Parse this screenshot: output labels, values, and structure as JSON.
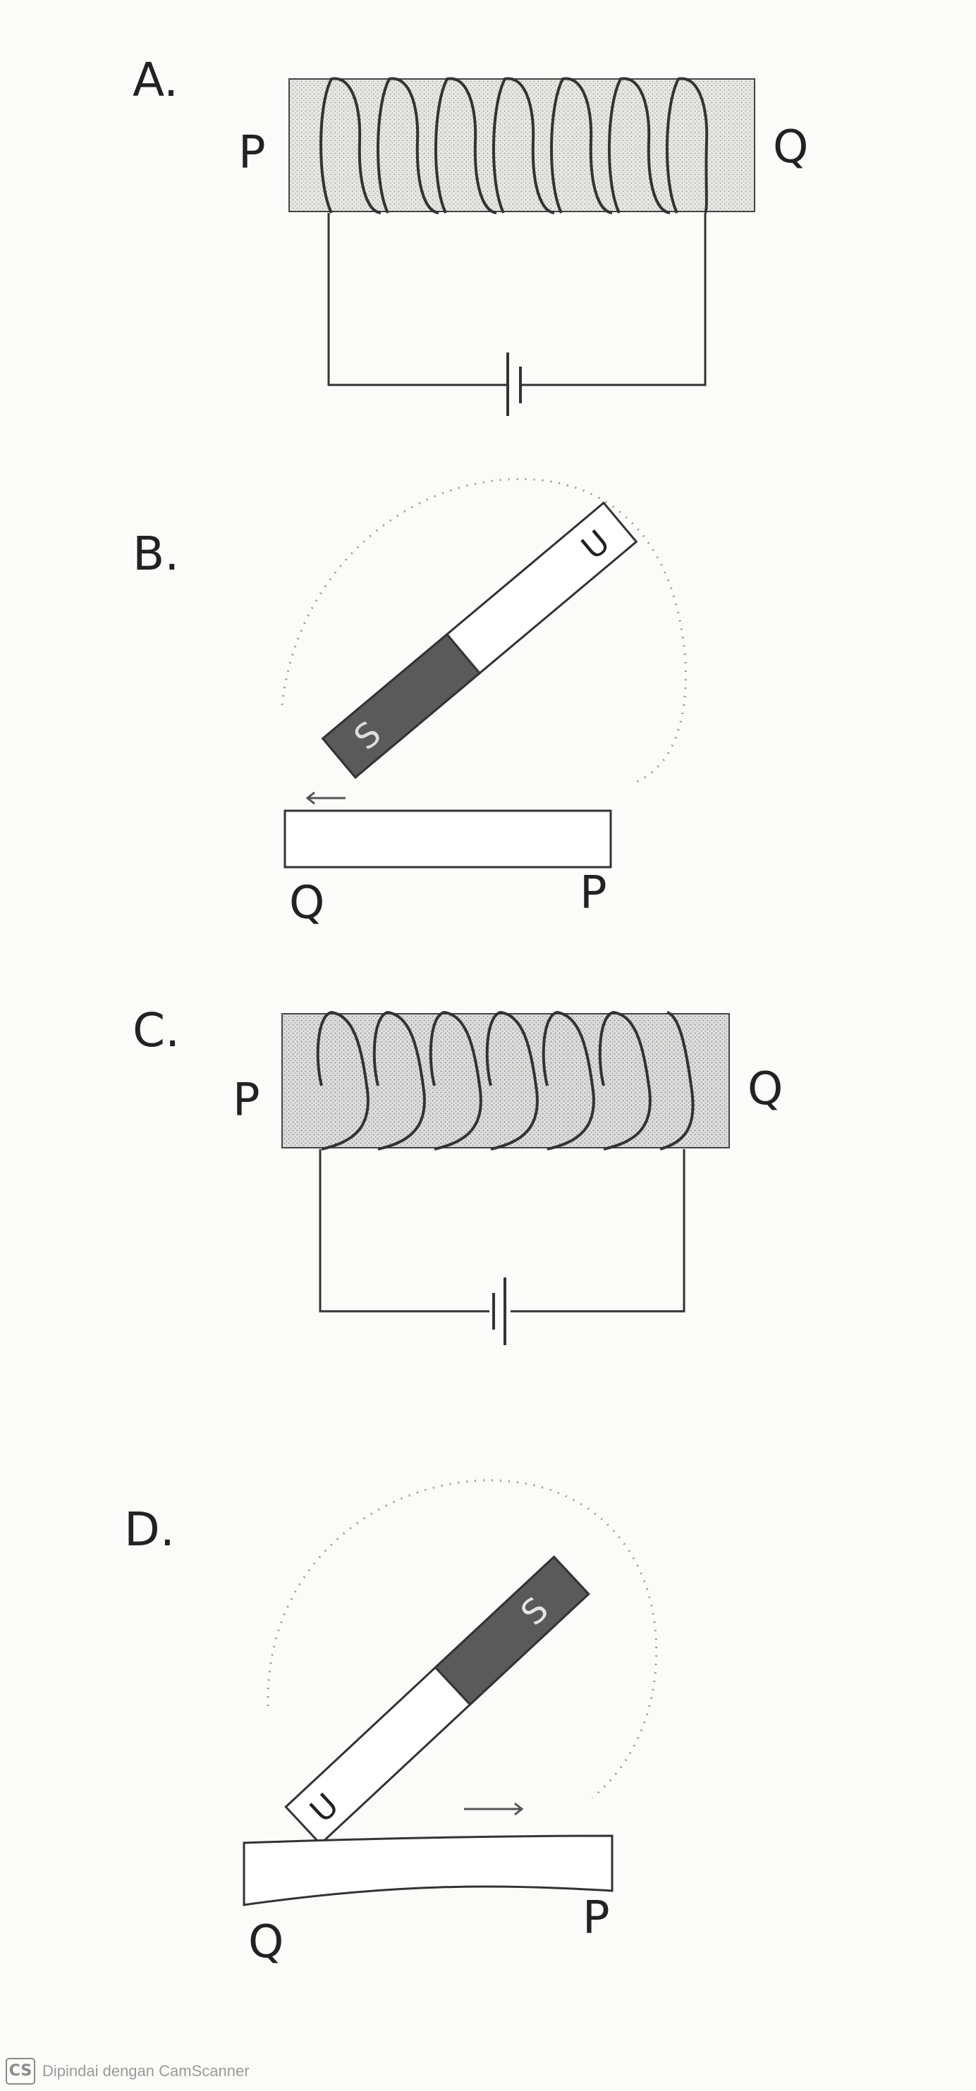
{
  "options": [
    {
      "letter": "A.",
      "left_label": "P",
      "right_label": "Q"
    },
    {
      "letter": "B.",
      "left_label": "Q",
      "right_label": "P",
      "magnet_poles": [
        "U",
        "S"
      ]
    },
    {
      "letter": "C.",
      "left_label": "P",
      "right_label": "Q"
    },
    {
      "letter": "D.",
      "left_label": "Q",
      "right_label": "P",
      "magnet_poles": [
        "U",
        "S"
      ]
    }
  ],
  "footer": {
    "logo": "CS",
    "text": "Dipindai dengan CamScanner"
  }
}
